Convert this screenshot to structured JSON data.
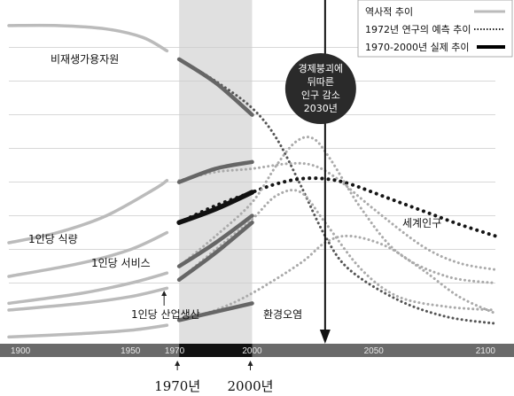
{
  "chart_data": {
    "type": "line",
    "x_range": [
      1900,
      2100
    ],
    "y_range": [
      0,
      100
    ],
    "x_ticks": [
      "1900",
      "1950",
      "1970",
      "2000",
      "2050",
      "2100"
    ],
    "shaded_period": [
      1970,
      2000
    ],
    "marker_year": 2030,
    "year_marks": [
      "1970년",
      "2000년"
    ],
    "legend": {
      "historical": "역사적 추이",
      "forecast": "1972년 연구의 예측 추이",
      "actual": "1970-2000년 실제 추이"
    },
    "callout": [
      "경제붕괴에",
      "뒤따른",
      "인구 감소",
      "2030년"
    ],
    "series": [
      {
        "name": "비재생가용자원",
        "historical": [
          [
            1900,
            94.5
          ],
          [
            1920,
            94.5
          ],
          [
            1940,
            93.5
          ],
          [
            1955,
            91
          ],
          [
            1965,
            87
          ]
        ],
        "actual": [
          [
            1970,
            84.5
          ],
          [
            1985,
            77.5
          ],
          [
            2000,
            68
          ]
        ],
        "forecast": [
          [
            1970,
            84.5
          ],
          [
            1985,
            78
          ],
          [
            2000,
            70
          ],
          [
            2010,
            61
          ],
          [
            2020,
            47
          ],
          [
            2030,
            32
          ],
          [
            2040,
            22
          ],
          [
            2060,
            13
          ],
          [
            2080,
            8
          ],
          [
            2100,
            6
          ]
        ]
      },
      {
        "name": "1인당 식량",
        "historical": [
          [
            1900,
            30
          ],
          [
            1920,
            33
          ],
          [
            1940,
            38
          ],
          [
            1960,
            46
          ],
          [
            1965,
            48.5
          ]
        ],
        "actual": [
          [
            1970,
            48
          ],
          [
            1985,
            52
          ],
          [
            2000,
            54
          ]
        ],
        "forecast": [
          [
            1970,
            48.5
          ],
          [
            1985,
            51
          ],
          [
            2000,
            52
          ],
          [
            2015,
            53.5
          ],
          [
            2025,
            53
          ],
          [
            2035,
            49
          ],
          [
            2050,
            40
          ],
          [
            2070,
            29
          ],
          [
            2085,
            24
          ],
          [
            2100,
            22
          ]
        ]
      },
      {
        "name": "세계인구",
        "historical": [
          [
            1900,
            20
          ],
          [
            1930,
            24
          ],
          [
            1950,
            28
          ],
          [
            1965,
            33
          ]
        ],
        "actual": [
          [
            1970,
            36
          ],
          [
            1985,
            40
          ],
          [
            2000,
            45
          ]
        ],
        "forecast": [
          [
            1970,
            36
          ],
          [
            1985,
            41
          ],
          [
            2000,
            45
          ],
          [
            2010,
            47.5
          ],
          [
            2020,
            49
          ],
          [
            2030,
            49
          ],
          [
            2040,
            47.5
          ],
          [
            2055,
            43.5
          ],
          [
            2070,
            39.5
          ],
          [
            2085,
            35.5
          ],
          [
            2100,
            32
          ]
        ]
      },
      {
        "name": "1인당 서비스",
        "historical": [
          [
            1900,
            12
          ],
          [
            1930,
            15
          ],
          [
            1950,
            18
          ],
          [
            1965,
            21
          ]
        ],
        "actual": [
          [
            1970,
            23
          ],
          [
            1985,
            30
          ],
          [
            2000,
            38
          ]
        ],
        "forecast": [
          [
            1970,
            23
          ],
          [
            1985,
            32
          ],
          [
            2000,
            42
          ],
          [
            2010,
            53
          ],
          [
            2018,
            60
          ],
          [
            2025,
            61
          ],
          [
            2032,
            55
          ],
          [
            2045,
            40
          ],
          [
            2060,
            27
          ],
          [
            2080,
            20
          ],
          [
            2100,
            18
          ]
        ]
      },
      {
        "name": "1인당 산업생산",
        "historical": [
          [
            1900,
            10
          ],
          [
            1930,
            12
          ],
          [
            1950,
            14
          ],
          [
            1965,
            16.5
          ]
        ],
        "actual": [
          [
            1970,
            19
          ],
          [
            1985,
            27
          ],
          [
            2000,
            36
          ]
        ],
        "forecast": [
          [
            1970,
            19
          ],
          [
            1985,
            28
          ],
          [
            2000,
            37
          ],
          [
            2010,
            44
          ],
          [
            2020,
            45
          ],
          [
            2030,
            36
          ],
          [
            2045,
            22
          ],
          [
            2060,
            14
          ],
          [
            2080,
            11
          ],
          [
            2100,
            10
          ]
        ]
      },
      {
        "name": "환경오염",
        "historical": [
          [
            1900,
            2
          ],
          [
            1930,
            3
          ],
          [
            1950,
            4
          ],
          [
            1965,
            5.5
          ]
        ],
        "actual": [
          [
            1970,
            7
          ],
          [
            1985,
            9.5
          ],
          [
            2000,
            12
          ]
        ],
        "forecast": [
          [
            1970,
            7
          ],
          [
            1985,
            10
          ],
          [
            2000,
            15
          ],
          [
            2020,
            24
          ],
          [
            2030,
            30
          ],
          [
            2040,
            32
          ],
          [
            2055,
            29
          ],
          [
            2070,
            22
          ],
          [
            2085,
            14
          ],
          [
            2100,
            9
          ]
        ]
      }
    ]
  },
  "colors": {
    "historical": "#bbbbbb",
    "actual": "#666666",
    "actual_population": "#111111",
    "forecast": "#aaaaaa",
    "forecast_dark": "#555555",
    "forecast_population": "#151515",
    "shade": "#e0e0e0",
    "axis_band": "#6a6a6a",
    "axis_band_dark": "#111111",
    "grid": "#cccccc",
    "callout": "#2a2a2a"
  }
}
